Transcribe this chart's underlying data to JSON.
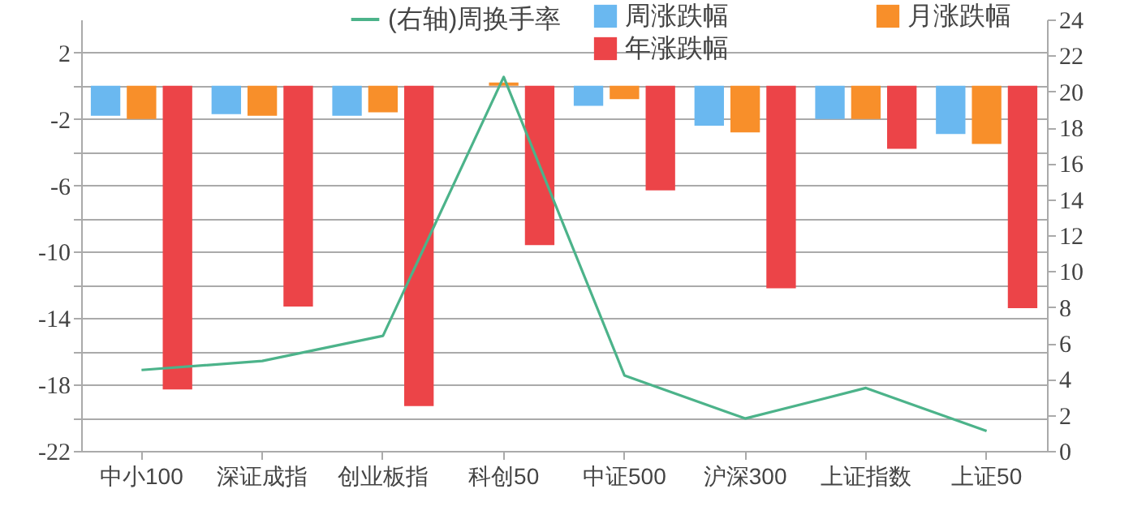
{
  "chart_data": {
    "type": "bar",
    "categories": [
      "中小100",
      "深证成指",
      "创业板指",
      "科创50",
      "中证500",
      "沪深300",
      "上证指数",
      "上证50"
    ],
    "series": [
      {
        "name": "(右轴)周换手率",
        "type": "line",
        "axis": "y2",
        "color": "#4cb38a",
        "values": [
          4.5,
          5.0,
          6.4,
          20.8,
          4.2,
          1.8,
          3.5,
          1.1
        ]
      },
      {
        "name": "周涨跌幅",
        "color": "#6ab8f0",
        "values": [
          -1.8,
          -1.7,
          -1.8,
          0,
          -1.2,
          -2.4,
          -2.0,
          -2.9
        ]
      },
      {
        "name": "月涨跌幅",
        "color": "#f88f2a",
        "values": [
          -2.0,
          -1.8,
          -1.6,
          0.2,
          -0.8,
          -2.8,
          -2.0,
          -3.5
        ]
      },
      {
        "name": "年涨跌幅",
        "color": "#ec4448",
        "values": [
          -18.3,
          -13.3,
          -19.3,
          -9.6,
          -6.3,
          -12.2,
          -3.8,
          -13.4
        ]
      }
    ],
    "ylim": [
      -22,
      4
    ],
    "yticks": [
      2,
      {
        "value": 0,
        "label": null
      },
      -2,
      {
        "value": -4,
        "label": null
      },
      -6,
      {
        "value": -8,
        "label": null
      },
      -10,
      {
        "value": -12,
        "label": null
      },
      -14,
      {
        "value": -16,
        "label": null
      },
      -18,
      {
        "value": -20,
        "label": null
      },
      -22
    ],
    "y2lim": [
      0,
      24
    ],
    "y2ticks": [
      0,
      2,
      4,
      6,
      8,
      10,
      12,
      14,
      16,
      18,
      20,
      22,
      24
    ],
    "grid": "y",
    "legend": "top"
  }
}
